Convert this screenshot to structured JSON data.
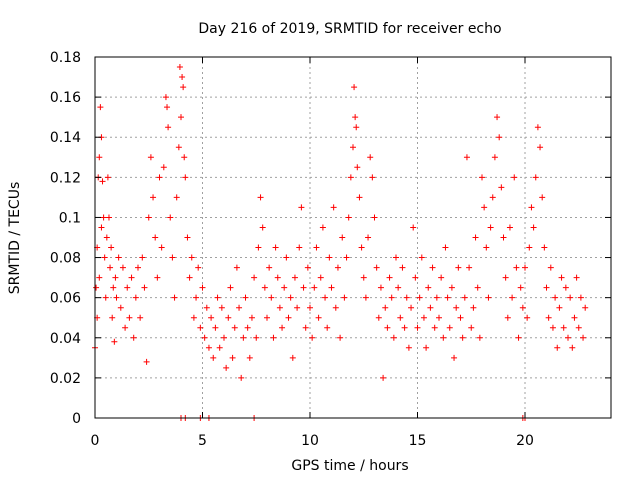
{
  "chart_data": {
    "type": "scatter",
    "title": "Day 216 of 2019, SRMTID for receiver echo",
    "xlabel": "GPS time / hours",
    "ylabel": "SRMTID / TECUs",
    "xlim": [
      0,
      24
    ],
    "ylim": [
      0,
      0.18
    ],
    "x_ticks": [
      0,
      5,
      10,
      15,
      20
    ],
    "x_tick_labels": [
      "0",
      "5",
      "10",
      "15",
      "20"
    ],
    "y_ticks": [
      0,
      0.02,
      0.04,
      0.06,
      0.08,
      0.1,
      0.12,
      0.14,
      0.16,
      0.18
    ],
    "y_tick_labels": [
      "0",
      "0.02",
      "0.04",
      "0.06",
      "0.08",
      "0.1",
      "0.12",
      "0.14",
      "0.16",
      "0.18"
    ],
    "grid": true,
    "marker": "+",
    "color": "#ff0000",
    "series": [
      {
        "name": "SRMTID",
        "points": [
          [
            0.0,
            0.035
          ],
          [
            0.05,
            0.065
          ],
          [
            0.1,
            0.085
          ],
          [
            0.1,
            0.05
          ],
          [
            0.15,
            0.12
          ],
          [
            0.2,
            0.13
          ],
          [
            0.2,
            0.07
          ],
          [
            0.25,
            0.155
          ],
          [
            0.3,
            0.14
          ],
          [
            0.3,
            0.095
          ],
          [
            0.35,
            0.118
          ],
          [
            0.4,
            0.1
          ],
          [
            0.45,
            0.08
          ],
          [
            0.5,
            0.06
          ],
          [
            0.55,
            0.09
          ],
          [
            0.6,
            0.12
          ],
          [
            0.65,
            0.1
          ],
          [
            0.7,
            0.075
          ],
          [
            0.75,
            0.085
          ],
          [
            0.8,
            0.05
          ],
          [
            0.85,
            0.065
          ],
          [
            0.9,
            0.038
          ],
          [
            0.95,
            0.07
          ],
          [
            1.0,
            0.06
          ],
          [
            1.1,
            0.08
          ],
          [
            1.2,
            0.055
          ],
          [
            1.3,
            0.075
          ],
          [
            1.4,
            0.045
          ],
          [
            1.5,
            0.065
          ],
          [
            1.6,
            0.05
          ],
          [
            1.7,
            0.07
          ],
          [
            1.8,
            0.04
          ],
          [
            1.9,
            0.06
          ],
          [
            2.0,
            0.075
          ],
          [
            2.1,
            0.05
          ],
          [
            2.2,
            0.08
          ],
          [
            2.3,
            0.065
          ],
          [
            2.4,
            0.028
          ],
          [
            2.5,
            0.1
          ],
          [
            2.6,
            0.13
          ],
          [
            2.7,
            0.11
          ],
          [
            2.8,
            0.09
          ],
          [
            2.9,
            0.07
          ],
          [
            3.0,
            0.12
          ],
          [
            3.1,
            0.085
          ],
          [
            3.2,
            0.125
          ],
          [
            3.3,
            0.16
          ],
          [
            3.35,
            0.155
          ],
          [
            3.4,
            0.145
          ],
          [
            3.5,
            0.1
          ],
          [
            3.6,
            0.08
          ],
          [
            3.7,
            0.06
          ],
          [
            3.8,
            0.11
          ],
          [
            3.9,
            0.135
          ],
          [
            3.95,
            0.175
          ],
          [
            4.0,
            0.15
          ],
          [
            4.05,
            0.17
          ],
          [
            4.1,
            0.165
          ],
          [
            4.15,
            0.13
          ],
          [
            4.2,
            0.12
          ],
          [
            4.3,
            0.09
          ],
          [
            4.4,
            0.07
          ],
          [
            4.5,
            0.08
          ],
          [
            4.6,
            0.05
          ],
          [
            4.7,
            0.06
          ],
          [
            4.8,
            0.075
          ],
          [
            4.9,
            0.045
          ],
          [
            5.0,
            0.065
          ],
          [
            5.1,
            0.04
          ],
          [
            5.2,
            0.055
          ],
          [
            5.3,
            0.035
          ],
          [
            5.4,
            0.05
          ],
          [
            5.5,
            0.03
          ],
          [
            5.6,
            0.045
          ],
          [
            5.7,
            0.06
          ],
          [
            5.8,
            0.035
          ],
          [
            5.9,
            0.055
          ],
          [
            6.0,
            0.04
          ],
          [
            6.1,
            0.025
          ],
          [
            6.2,
            0.05
          ],
          [
            6.3,
            0.065
          ],
          [
            6.4,
            0.03
          ],
          [
            6.5,
            0.045
          ],
          [
            6.6,
            0.075
          ],
          [
            6.7,
            0.055
          ],
          [
            6.8,
            0.02
          ],
          [
            6.9,
            0.04
          ],
          [
            7.0,
            0.06
          ],
          [
            7.1,
            0.045
          ],
          [
            7.2,
            0.03
          ],
          [
            7.3,
            0.05
          ],
          [
            7.4,
            0.07
          ],
          [
            7.5,
            0.04
          ],
          [
            7.6,
            0.085
          ],
          [
            7.7,
            0.11
          ],
          [
            7.8,
            0.095
          ],
          [
            7.9,
            0.065
          ],
          [
            8.0,
            0.05
          ],
          [
            8.1,
            0.075
          ],
          [
            8.2,
            0.06
          ],
          [
            8.3,
            0.04
          ],
          [
            8.4,
            0.085
          ],
          [
            8.5,
            0.07
          ],
          [
            8.6,
            0.055
          ],
          [
            8.7,
            0.045
          ],
          [
            8.8,
            0.065
          ],
          [
            8.9,
            0.08
          ],
          [
            9.0,
            0.05
          ],
          [
            9.1,
            0.06
          ],
          [
            9.2,
            0.03
          ],
          [
            9.3,
            0.07
          ],
          [
            9.4,
            0.055
          ],
          [
            9.5,
            0.085
          ],
          [
            9.6,
            0.105
          ],
          [
            9.7,
            0.065
          ],
          [
            9.8,
            0.045
          ],
          [
            9.9,
            0.075
          ],
          [
            10.0,
            0.055
          ],
          [
            10.1,
            0.04
          ],
          [
            10.2,
            0.065
          ],
          [
            10.3,
            0.085
          ],
          [
            10.4,
            0.05
          ],
          [
            10.5,
            0.07
          ],
          [
            10.6,
            0.095
          ],
          [
            10.7,
            0.06
          ],
          [
            10.8,
            0.045
          ],
          [
            10.9,
            0.08
          ],
          [
            11.0,
            0.065
          ],
          [
            11.1,
            0.105
          ],
          [
            11.2,
            0.055
          ],
          [
            11.3,
            0.075
          ],
          [
            11.4,
            0.04
          ],
          [
            11.5,
            0.09
          ],
          [
            11.6,
            0.06
          ],
          [
            11.7,
            0.08
          ],
          [
            11.8,
            0.1
          ],
          [
            11.9,
            0.12
          ],
          [
            12.0,
            0.135
          ],
          [
            12.05,
            0.165
          ],
          [
            12.1,
            0.15
          ],
          [
            12.15,
            0.145
          ],
          [
            12.2,
            0.125
          ],
          [
            12.3,
            0.11
          ],
          [
            12.4,
            0.085
          ],
          [
            12.5,
            0.07
          ],
          [
            12.6,
            0.06
          ],
          [
            12.7,
            0.09
          ],
          [
            12.8,
            0.13
          ],
          [
            12.9,
            0.12
          ],
          [
            13.0,
            0.1
          ],
          [
            13.1,
            0.075
          ],
          [
            13.2,
            0.05
          ],
          [
            13.3,
            0.065
          ],
          [
            13.4,
            0.02
          ],
          [
            13.5,
            0.055
          ],
          [
            13.6,
            0.045
          ],
          [
            13.7,
            0.07
          ],
          [
            13.8,
            0.06
          ],
          [
            13.9,
            0.04
          ],
          [
            14.0,
            0.08
          ],
          [
            14.1,
            0.065
          ],
          [
            14.2,
            0.05
          ],
          [
            14.3,
            0.075
          ],
          [
            14.4,
            0.045
          ],
          [
            14.5,
            0.06
          ],
          [
            14.6,
            0.035
          ],
          [
            14.7,
            0.055
          ],
          [
            14.8,
            0.095
          ],
          [
            14.9,
            0.07
          ],
          [
            15.0,
            0.045
          ],
          [
            15.1,
            0.06
          ],
          [
            15.2,
            0.08
          ],
          [
            15.3,
            0.05
          ],
          [
            15.4,
            0.035
          ],
          [
            15.5,
            0.065
          ],
          [
            15.6,
            0.055
          ],
          [
            15.7,
            0.075
          ],
          [
            15.8,
            0.045
          ],
          [
            15.9,
            0.06
          ],
          [
            16.0,
            0.05
          ],
          [
            16.1,
            0.07
          ],
          [
            16.2,
            0.04
          ],
          [
            16.3,
            0.085
          ],
          [
            16.4,
            0.06
          ],
          [
            16.5,
            0.045
          ],
          [
            16.6,
            0.065
          ],
          [
            16.7,
            0.03
          ],
          [
            16.8,
            0.055
          ],
          [
            16.9,
            0.075
          ],
          [
            17.0,
            0.05
          ],
          [
            17.1,
            0.04
          ],
          [
            17.2,
            0.06
          ],
          [
            17.3,
            0.13
          ],
          [
            17.4,
            0.075
          ],
          [
            17.5,
            0.045
          ],
          [
            17.6,
            0.055
          ],
          [
            17.7,
            0.09
          ],
          [
            17.8,
            0.065
          ],
          [
            17.9,
            0.04
          ],
          [
            18.0,
            0.12
          ],
          [
            18.1,
            0.105
          ],
          [
            18.2,
            0.085
          ],
          [
            18.3,
            0.06
          ],
          [
            18.4,
            0.095
          ],
          [
            18.5,
            0.11
          ],
          [
            18.6,
            0.13
          ],
          [
            18.7,
            0.15
          ],
          [
            18.8,
            0.14
          ],
          [
            18.9,
            0.115
          ],
          [
            19.0,
            0.09
          ],
          [
            19.1,
            0.07
          ],
          [
            19.2,
            0.05
          ],
          [
            19.3,
            0.095
          ],
          [
            19.4,
            0.06
          ],
          [
            19.5,
            0.12
          ],
          [
            19.6,
            0.075
          ],
          [
            19.7,
            0.04
          ],
          [
            19.8,
            0.065
          ],
          [
            19.9,
            0.055
          ],
          [
            20.0,
            0.075
          ],
          [
            20.1,
            0.05
          ],
          [
            20.2,
            0.085
          ],
          [
            20.3,
            0.105
          ],
          [
            20.4,
            0.095
          ],
          [
            20.5,
            0.12
          ],
          [
            20.6,
            0.145
          ],
          [
            20.7,
            0.135
          ],
          [
            20.8,
            0.11
          ],
          [
            20.9,
            0.085
          ],
          [
            21.0,
            0.065
          ],
          [
            21.1,
            0.05
          ],
          [
            21.2,
            0.075
          ],
          [
            21.3,
            0.045
          ],
          [
            21.4,
            0.06
          ],
          [
            21.5,
            0.035
          ],
          [
            21.6,
            0.055
          ],
          [
            21.7,
            0.07
          ],
          [
            21.8,
            0.045
          ],
          [
            21.9,
            0.065
          ],
          [
            22.0,
            0.04
          ],
          [
            22.1,
            0.06
          ],
          [
            22.2,
            0.035
          ],
          [
            22.3,
            0.05
          ],
          [
            22.4,
            0.07
          ],
          [
            22.5,
            0.045
          ],
          [
            22.6,
            0.06
          ],
          [
            22.7,
            0.04
          ],
          [
            22.8,
            0.055
          ]
        ]
      }
    ],
    "zero_points": [
      4.0,
      4.2,
      4.9,
      5.3,
      7.4,
      19.9,
      20.0
    ]
  }
}
